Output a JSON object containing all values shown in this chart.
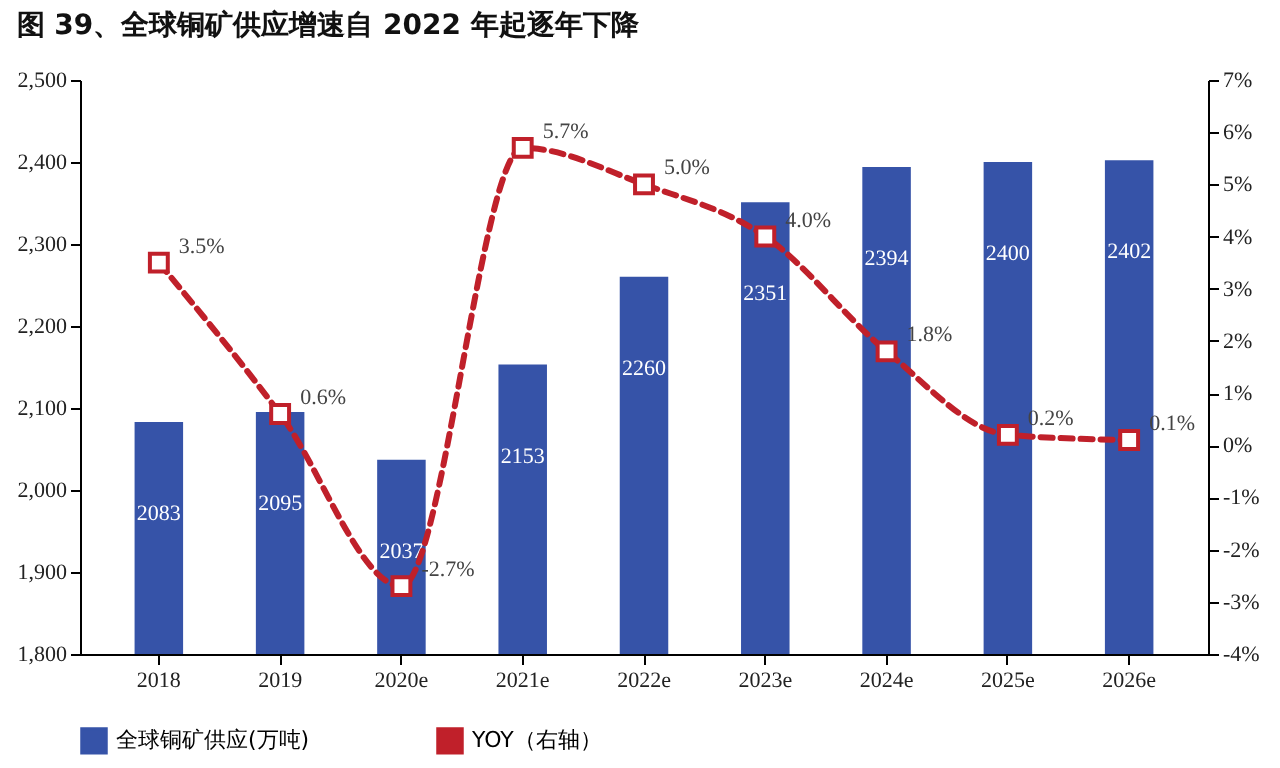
{
  "chart_data": {
    "type": "bar",
    "title": "图 39、全球铜矿供应增速自 2022 年起逐年下降",
    "categories": [
      "2018",
      "2019",
      "2020e",
      "2021e",
      "2022e",
      "2023e",
      "2024e",
      "2025e",
      "2026e"
    ],
    "series": [
      {
        "name": "全球铜矿供应(万吨)",
        "color": "#3653a8",
        "values": [
          2083,
          2095,
          2037,
          2153,
          2260,
          2351,
          2394,
          2400,
          2402
        ],
        "value_labels": [
          "2083",
          "2095",
          "2037",
          "2153",
          "2260",
          "2351",
          "2394",
          "2400",
          "2402"
        ]
      },
      {
        "name": "YOY（右轴）",
        "type": "line",
        "axis": "y2",
        "color": "#c0202a",
        "line_style": "dashed",
        "marker": "square",
        "values": [
          3.5,
          0.6,
          -2.7,
          5.7,
          5.0,
          4.0,
          1.8,
          0.2,
          0.1
        ],
        "value_labels": [
          "3.5%",
          "0.6%",
          "-2.7%",
          "5.7%",
          "5.0%",
          "4.0%",
          "1.8%",
          "0.2%",
          "0.1%"
        ]
      }
    ],
    "ylim": [
      1800,
      2500
    ],
    "yticks": [
      {
        "value": 1800,
        "label": "1,800"
      },
      {
        "value": 1900,
        "label": "1,900"
      },
      {
        "value": 2000,
        "label": "2,000"
      },
      {
        "value": 2100,
        "label": "2,100"
      },
      {
        "value": 2200,
        "label": "2,200"
      },
      {
        "value": 2300,
        "label": "2,300"
      },
      {
        "value": 2400,
        "label": "2,400"
      },
      {
        "value": 2500,
        "label": "2,500"
      }
    ],
    "y2lim": [
      -4,
      7
    ],
    "y2ticks": [
      {
        "value": -4,
        "label": "-4%"
      },
      {
        "value": -3,
        "label": "-3%"
      },
      {
        "value": -2,
        "label": "-2%"
      },
      {
        "value": -1,
        "label": "-1%"
      },
      {
        "value": 0,
        "label": "0%"
      },
      {
        "value": 1,
        "label": "1%"
      },
      {
        "value": 2,
        "label": "2%"
      },
      {
        "value": 3,
        "label": "3%"
      },
      {
        "value": 4,
        "label": "4%"
      },
      {
        "value": 5,
        "label": "5%"
      },
      {
        "value": 6,
        "label": "6%"
      },
      {
        "value": 7,
        "label": "7%"
      }
    ],
    "legend": "bottom",
    "grid": false
  }
}
